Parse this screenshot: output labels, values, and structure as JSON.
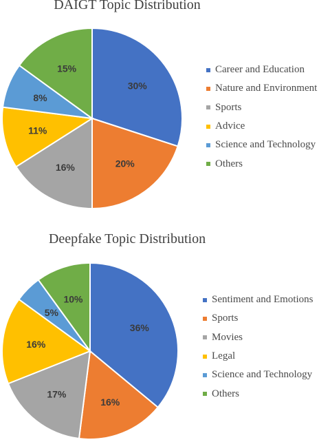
{
  "chart_data": [
    {
      "type": "pie",
      "title": "DAIGT Topic Distribution",
      "categories": [
        "Career and Education",
        "Nature and Environment",
        "Sports",
        "Advice",
        "Science and Technology",
        "Others"
      ],
      "values": [
        30,
        20,
        16,
        11,
        8,
        15
      ],
      "labels": [
        "30%",
        "20%",
        "16%",
        "11%",
        "8%",
        "15%"
      ],
      "colors": [
        "#4472C4",
        "#ED7D31",
        "#A5A5A5",
        "#FFC000",
        "#5B9BD5",
        "#70AD47"
      ],
      "legend": "right"
    },
    {
      "type": "pie",
      "title": "Deepfake Topic Distribution",
      "categories": [
        "Sentiment and Emotions",
        "Sports",
        "Movies",
        "Legal",
        "Science and Technology",
        "Others"
      ],
      "values": [
        36,
        16,
        17,
        16,
        5,
        10
      ],
      "labels": [
        "36%",
        "16%",
        "17%",
        "16%",
        "5%",
        "10%"
      ],
      "colors": [
        "#4472C4",
        "#ED7D31",
        "#A5A5A5",
        "#FFC000",
        "#5B9BD5",
        "#70AD47"
      ],
      "legend": "right"
    }
  ]
}
